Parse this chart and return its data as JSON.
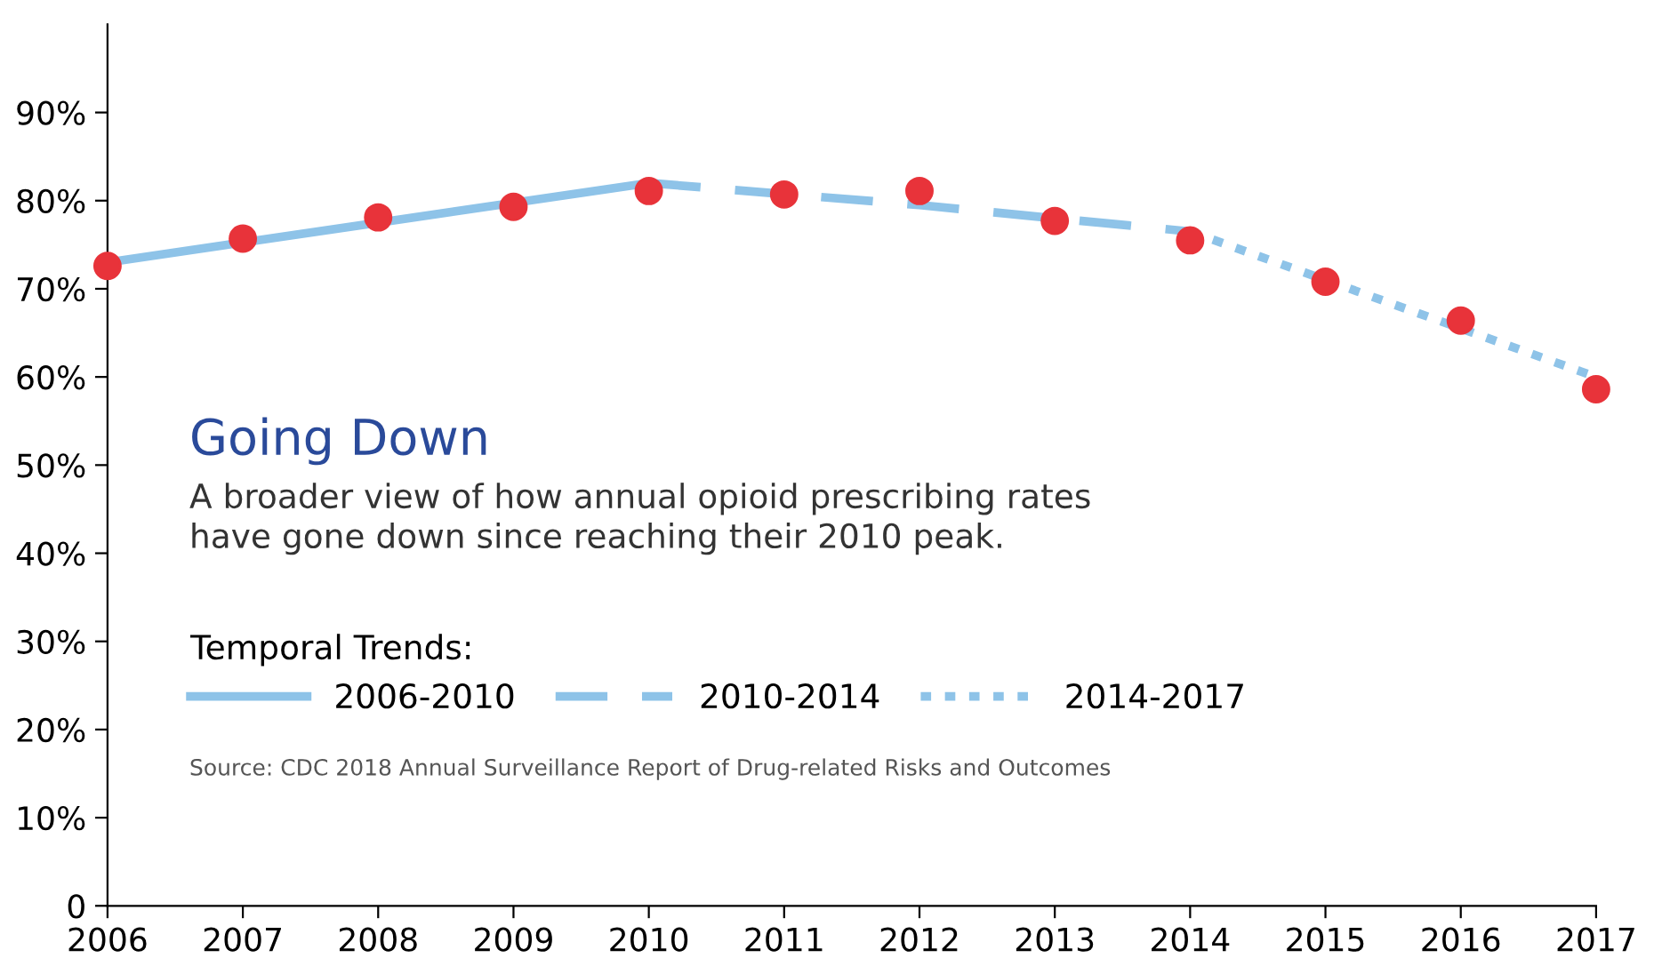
{
  "chart_data": {
    "type": "line",
    "title": "Going Down",
    "subtitle": "A broader view of how annual opioid prescribing rates\nhave gone down since reaching their 2010 peak.",
    "annotations": [
      "Source: CDC 2018 Annual Surveillance Report of Drug-related Risks and Outcomes"
    ],
    "legend_title": "Temporal Trends:",
    "legend": "bottom left",
    "grid": false,
    "xlim": [
      2006,
      2017
    ],
    "xticks": [
      2006,
      2007,
      2008,
      2009,
      2010,
      2011,
      2012,
      2013,
      2014,
      2015,
      2016,
      2017
    ],
    "ylim": [
      0,
      100
    ],
    "yticks": [
      {
        "value": 0,
        "label": "0"
      },
      {
        "value": 10,
        "label": "10%"
      },
      {
        "value": 20,
        "label": "20%"
      },
      {
        "value": 30,
        "label": "30%"
      },
      {
        "value": 40,
        "label": "40%"
      },
      {
        "value": 50,
        "label": "50%"
      },
      {
        "value": 60,
        "label": "60%"
      },
      {
        "value": 70,
        "label": "70%"
      },
      {
        "value": 80,
        "label": "80%"
      },
      {
        "value": 90,
        "label": "90%"
      }
    ],
    "series": [
      {
        "name": "2006-2010",
        "line_style": "solid",
        "color": "#8ec3e8",
        "x": [
          2006,
          2010
        ],
        "values": [
          73,
          82
        ]
      },
      {
        "name": "2010-2014",
        "line_style": "dashed",
        "color": "#8ec3e8",
        "x": [
          2010,
          2012,
          2014
        ],
        "values": [
          82,
          79.5,
          76.5
        ]
      },
      {
        "name": "2014-2017",
        "line_style": "dotted",
        "color": "#8ec3e8",
        "x": [
          2014,
          2015,
          2016,
          2017
        ],
        "values": [
          76.5,
          71,
          65.5,
          60
        ]
      },
      {
        "type": "scatter",
        "marker": "circle",
        "color": "#e8333a",
        "x": [
          2006,
          2007,
          2008,
          2009,
          2010,
          2011,
          2012,
          2013,
          2014,
          2015,
          2016,
          2017
        ],
        "values": [
          72.6,
          75.7,
          78.1,
          79.3,
          81.1,
          80.7,
          81.1,
          77.7,
          75.5,
          70.8,
          66.4,
          58.6
        ]
      }
    ]
  }
}
